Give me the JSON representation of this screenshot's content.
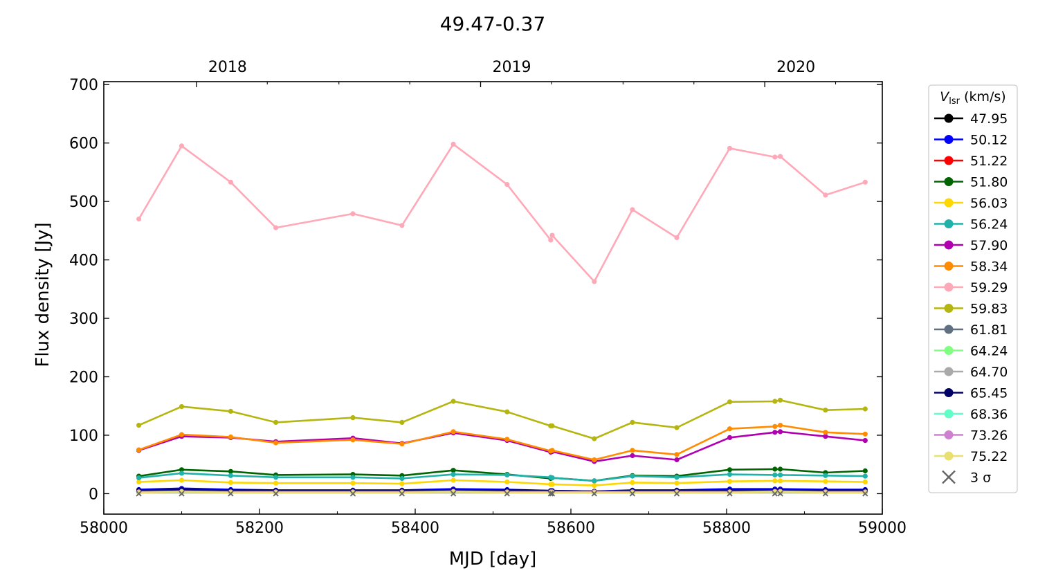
{
  "chart_data": {
    "type": "line",
    "title": "49.47-0.37",
    "xlabel": "MJD [day]",
    "ylabel": "Flux density [Jy]",
    "xlim": [
      58000,
      59000
    ],
    "ylim": [
      -35,
      705
    ],
    "x_ticks": [
      58000,
      58200,
      58400,
      58600,
      58800,
      59000
    ],
    "y_ticks": [
      0,
      100,
      200,
      300,
      400,
      500,
      600,
      700
    ],
    "top_axis": {
      "labels": [
        "2018",
        "2019",
        "2020"
      ],
      "positions": [
        58119,
        58484,
        58849
      ]
    },
    "legend": {
      "title_main": "V",
      "title_sub": "lsr",
      "title_unit": "(km/s)",
      "location": "outside-right",
      "sigma_label": "3 σ"
    },
    "x": [
      58045,
      58100,
      58163,
      58221,
      58320,
      58383,
      58449,
      58518,
      58574,
      58576,
      58630,
      58679,
      58736,
      58804,
      58862,
      58869,
      58927,
      58978
    ],
    "series": [
      {
        "name": "47.95",
        "color": "#000000",
        "values": [
          4,
          5,
          4,
          4,
          4,
          4,
          5,
          4,
          3,
          3,
          3,
          3,
          3,
          4,
          4,
          4,
          4,
          4
        ]
      },
      {
        "name": "50.12",
        "color": "#0000ff",
        "values": [
          7,
          9,
          7,
          6,
          6,
          6,
          8,
          7,
          5,
          5,
          4,
          6,
          6,
          8,
          8,
          8,
          7,
          7
        ]
      },
      {
        "name": "51.22",
        "color": "#ff0000",
        "values": [
          5,
          6,
          5,
          4,
          5,
          5,
          6,
          5,
          4,
          4,
          4,
          4,
          4,
          5,
          6,
          6,
          5,
          5
        ]
      },
      {
        "name": "51.80",
        "color": "#006400",
        "values": [
          30,
          41,
          38,
          32,
          33,
          31,
          40,
          33,
          26,
          27,
          22,
          31,
          30,
          41,
          42,
          42,
          36,
          39
        ]
      },
      {
        "name": "56.03",
        "color": "#ffd700",
        "values": [
          20,
          23,
          19,
          18,
          18,
          17,
          23,
          20,
          16,
          16,
          14,
          19,
          18,
          21,
          22,
          22,
          21,
          20
        ]
      },
      {
        "name": "56.24",
        "color": "#20b2aa",
        "values": [
          27,
          35,
          31,
          28,
          28,
          26,
          33,
          32,
          28,
          27,
          22,
          30,
          28,
          33,
          32,
          32,
          31,
          30
        ]
      },
      {
        "name": "57.90",
        "color": "#b000b0",
        "values": [
          74,
          98,
          96,
          89,
          95,
          86,
          104,
          91,
          71,
          72,
          55,
          65,
          58,
          96,
          105,
          106,
          98,
          91
        ]
      },
      {
        "name": "58.34",
        "color": "#ff8c00",
        "values": [
          75,
          101,
          97,
          87,
          92,
          85,
          106,
          93,
          73,
          74,
          58,
          74,
          67,
          111,
          115,
          117,
          105,
          102
        ]
      },
      {
        "name": "59.29",
        "color": "#ffa8b8",
        "values": [
          470,
          595,
          533,
          455,
          479,
          459,
          598,
          529,
          434,
          442,
          363,
          486,
          438,
          591,
          576,
          577,
          511,
          533
        ]
      },
      {
        "name": "59.83",
        "color": "#b5b50f",
        "values": [
          117,
          149,
          141,
          122,
          130,
          122,
          158,
          140,
          116,
          116,
          94,
          122,
          113,
          157,
          158,
          160,
          143,
          145
        ]
      },
      {
        "name": "61.81",
        "color": "#607080",
        "values": [
          2,
          2,
          2,
          2,
          2,
          2,
          2,
          2,
          2,
          2,
          2,
          2,
          2,
          2,
          2,
          2,
          2,
          2
        ]
      },
      {
        "name": "64.24",
        "color": "#80ff80",
        "values": [
          3,
          3,
          3,
          3,
          3,
          3,
          3,
          3,
          3,
          3,
          3,
          3,
          3,
          3,
          3,
          3,
          3,
          3
        ]
      },
      {
        "name": "64.70",
        "color": "#aaaaaa",
        "values": [
          2,
          2,
          2,
          2,
          2,
          2,
          2,
          2,
          2,
          2,
          2,
          2,
          2,
          2,
          2,
          2,
          2,
          2
        ]
      },
      {
        "name": "65.45",
        "color": "#000066",
        "values": [
          6,
          7,
          6,
          5,
          5,
          5,
          6,
          6,
          5,
          5,
          4,
          5,
          5,
          6,
          6,
          6,
          6,
          6
        ]
      },
      {
        "name": "68.36",
        "color": "#60ffc8",
        "values": [
          3,
          3,
          3,
          3,
          3,
          3,
          3,
          3,
          3,
          3,
          3,
          3,
          3,
          3,
          3,
          3,
          3,
          3
        ]
      },
      {
        "name": "73.26",
        "color": "#d080d0",
        "values": [
          3,
          4,
          3,
          3,
          3,
          3,
          4,
          3,
          3,
          3,
          3,
          3,
          3,
          3,
          4,
          4,
          3,
          3
        ]
      },
      {
        "name": "75.22",
        "color": "#e8e070",
        "values": [
          2,
          3,
          2,
          2,
          2,
          2,
          3,
          2,
          2,
          2,
          2,
          2,
          2,
          2,
          3,
          3,
          2,
          2
        ]
      }
    ],
    "sigma3": {
      "name": "3 σ",
      "color": "#666666",
      "values": [
        0,
        0,
        0,
        0,
        0,
        0,
        0,
        0,
        0,
        0,
        0,
        0,
        0,
        0,
        0,
        0,
        0,
        0
      ]
    }
  }
}
